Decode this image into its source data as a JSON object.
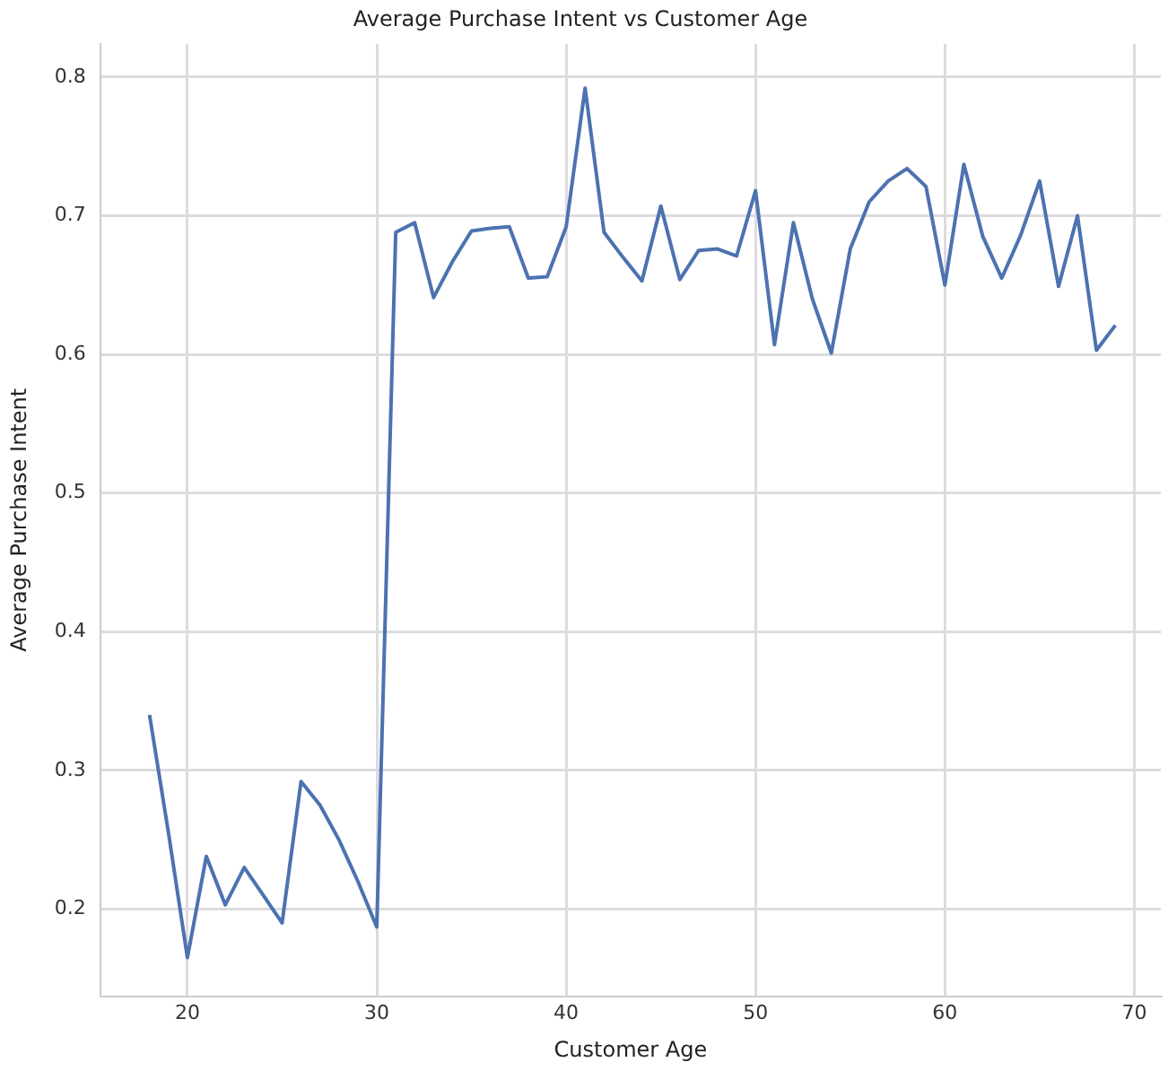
{
  "chart_data": {
    "type": "line",
    "title": "Average Purchase Intent vs Customer Age",
    "xlabel": "Customer Age",
    "ylabel": "Average Purchase Intent",
    "x": [
      18,
      19,
      20,
      21,
      22,
      23,
      24,
      25,
      26,
      27,
      28,
      29,
      30,
      31,
      32,
      33,
      34,
      35,
      36,
      37,
      38,
      39,
      40,
      41,
      42,
      43,
      44,
      45,
      46,
      47,
      48,
      49,
      50,
      51,
      52,
      53,
      54,
      55,
      56,
      57,
      58,
      59,
      60,
      61,
      62,
      63,
      64,
      65,
      66,
      67,
      68,
      69
    ],
    "series": [
      {
        "color": "#4c72b0",
        "values": [
          0.34,
          0.255,
          0.165,
          0.238,
          0.203,
          0.23,
          0.21,
          0.19,
          0.292,
          0.275,
          0.25,
          0.22,
          0.187,
          0.688,
          0.695,
          0.641,
          0.667,
          0.689,
          0.691,
          0.692,
          0.655,
          0.656,
          0.692,
          0.792,
          0.688,
          0.67,
          0.653,
          0.707,
          0.654,
          0.675,
          0.676,
          0.671,
          0.718,
          0.607,
          0.695,
          0.64,
          0.601,
          0.676,
          0.71,
          0.725,
          0.734,
          0.721,
          0.65,
          0.737,
          0.685,
          0.655,
          0.686,
          0.725,
          0.649,
          0.7,
          0.603,
          0.621
        ]
      }
    ],
    "xlim": [
      15.4,
      71.4
    ],
    "xticks": [
      20,
      30,
      40,
      50,
      60,
      70
    ],
    "ylim": [
      0.137,
      0.824
    ],
    "yticks": [
      0.2,
      0.3,
      0.4,
      0.5,
      0.6,
      0.7,
      0.8
    ],
    "grid": true,
    "legend": false,
    "marker": "none",
    "line_style": "solid"
  }
}
